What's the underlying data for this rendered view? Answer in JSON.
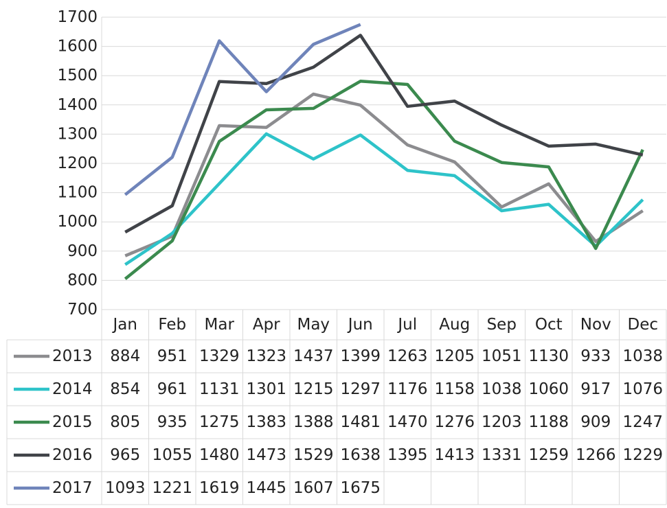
{
  "chart_data": {
    "type": "line",
    "categories": [
      "Jan",
      "Feb",
      "Mar",
      "Apr",
      "May",
      "Jun",
      "Jul",
      "Aug",
      "Sep",
      "Oct",
      "Nov",
      "Dec"
    ],
    "series": [
      {
        "name": "2013",
        "color": "#8c8c8f",
        "values": [
          884,
          951,
          1329,
          1323,
          1437,
          1399,
          1263,
          1205,
          1051,
          1130,
          933,
          1038
        ]
      },
      {
        "name": "2014",
        "color": "#2ec3c9",
        "values": [
          854,
          961,
          1131,
          1301,
          1215,
          1297,
          1176,
          1158,
          1038,
          1060,
          917,
          1076
        ]
      },
      {
        "name": "2015",
        "color": "#3b8a4e",
        "values": [
          805,
          935,
          1275,
          1383,
          1388,
          1481,
          1470,
          1276,
          1203,
          1188,
          909,
          1247
        ]
      },
      {
        "name": "2016",
        "color": "#404348",
        "values": [
          965,
          1055,
          1480,
          1473,
          1529,
          1638,
          1395,
          1413,
          1331,
          1259,
          1266,
          1229
        ]
      },
      {
        "name": "2017",
        "color": "#6f84ba",
        "values": [
          1093,
          1221,
          1619,
          1445,
          1607,
          1675,
          null,
          null,
          null,
          null,
          null,
          null
        ]
      }
    ],
    "ylim": [
      700,
      1700
    ],
    "yticks": [
      700,
      800,
      900,
      1000,
      1100,
      1200,
      1300,
      1400,
      1500,
      1600,
      1700
    ],
    "grid": true
  }
}
